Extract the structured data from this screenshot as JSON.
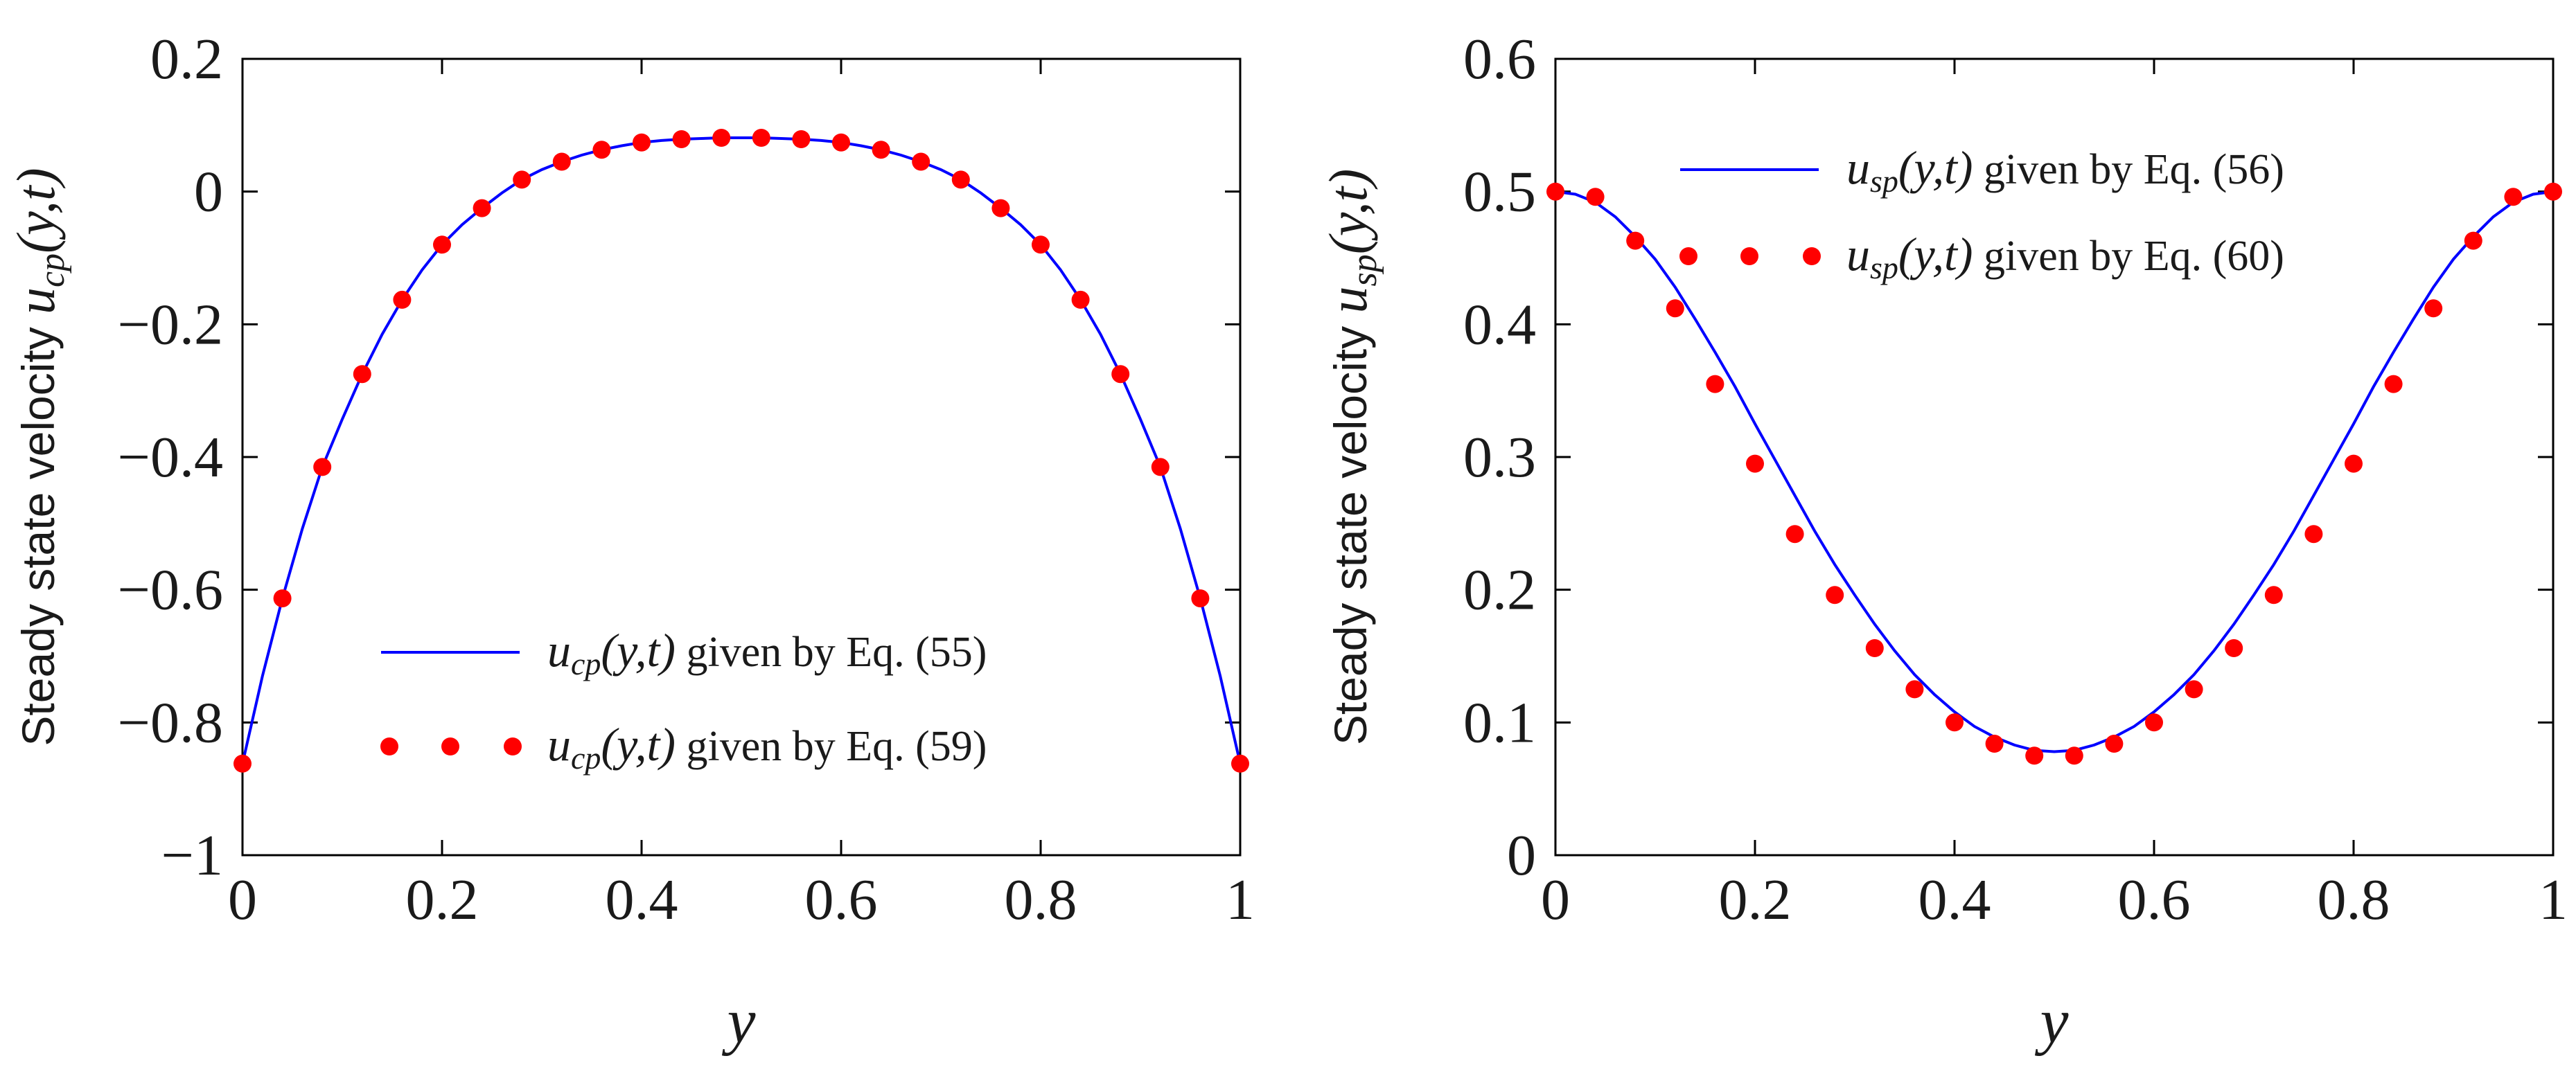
{
  "chart_data": [
    {
      "type": "line",
      "title": "",
      "xlabel": "y",
      "ylabel": "Steady state velocity u",
      "ylabel_sub": "cp",
      "ylabel_args": "(y,t)",
      "xlim": [
        0,
        1
      ],
      "ylim": [
        -1,
        0.2
      ],
      "xticks": [
        "0",
        "0.2",
        "0.4",
        "0.6",
        "0.8",
        "1"
      ],
      "xtick_values": [
        0,
        0.2,
        0.4,
        0.6,
        0.8,
        1
      ],
      "yticks": [
        "−1",
        "−0.8",
        "−0.6",
        "−0.4",
        "−0.2",
        "0",
        "0.2"
      ],
      "ytick_values": [
        -1,
        -0.8,
        -0.6,
        -0.4,
        -0.2,
        0,
        0.2
      ],
      "legend_position": "lower-center",
      "series": [
        {
          "name": "u_cp(y,t) given by Eq. (55)",
          "legend": {
            "sym": "u",
            "sub": "cp",
            "args": "(y,t)",
            "rest": " given by Eq. (55)"
          },
          "style": "line",
          "color": "#0000ff",
          "x": [
            0,
            0.02,
            0.04,
            0.06,
            0.08,
            0.1,
            0.12,
            0.14,
            0.16,
            0.18,
            0.2,
            0.22,
            0.24,
            0.26,
            0.28,
            0.3,
            0.32,
            0.34,
            0.36,
            0.38,
            0.4,
            0.42,
            0.44,
            0.46,
            0.48,
            0.5,
            0.52,
            0.54,
            0.56,
            0.58,
            0.6,
            0.62,
            0.64,
            0.66,
            0.68,
            0.7,
            0.72,
            0.74,
            0.76,
            0.78,
            0.8,
            0.82,
            0.84,
            0.86,
            0.88,
            0.9,
            0.92,
            0.94,
            0.96,
            0.98,
            1
          ],
          "y": [
            -0.862,
            -0.73,
            -0.613,
            -0.508,
            -0.415,
            -0.343,
            -0.275,
            -0.215,
            -0.163,
            -0.118,
            -0.08,
            -0.05,
            -0.025,
            -0.002,
            0.018,
            0.033,
            0.045,
            0.055,
            0.063,
            0.069,
            0.074,
            0.077,
            0.079,
            0.08,
            0.081,
            0.081,
            0.081,
            0.08,
            0.079,
            0.077,
            0.074,
            0.069,
            0.063,
            0.055,
            0.045,
            0.033,
            0.018,
            -0.002,
            -0.025,
            -0.05,
            -0.08,
            -0.118,
            -0.163,
            -0.215,
            -0.275,
            -0.343,
            -0.415,
            -0.508,
            -0.613,
            -0.73,
            -0.862
          ]
        },
        {
          "name": "u_cp(y,t) given by Eq. (59)",
          "legend": {
            "sym": "u",
            "sub": "cp",
            "args": "(y,t)",
            "rest": " given by Eq. (59)"
          },
          "style": "markers",
          "color": "#ff0000",
          "x": [
            0,
            0.04,
            0.08,
            0.12,
            0.16,
            0.2,
            0.24,
            0.28,
            0.32,
            0.36,
            0.4,
            0.44,
            0.48,
            0.52,
            0.56,
            0.6,
            0.64,
            0.68,
            0.72,
            0.76,
            0.8,
            0.84,
            0.88,
            0.92,
            0.96,
            1
          ],
          "y": [
            -0.862,
            -0.613,
            -0.415,
            -0.275,
            -0.163,
            -0.08,
            -0.025,
            0.018,
            0.045,
            0.063,
            0.074,
            0.079,
            0.081,
            0.081,
            0.079,
            0.074,
            0.063,
            0.045,
            0.018,
            -0.025,
            -0.08,
            -0.163,
            -0.275,
            -0.415,
            -0.613,
            -0.862
          ]
        }
      ]
    },
    {
      "type": "line",
      "title": "",
      "xlabel": "y",
      "ylabel": "Steady state velocity u",
      "ylabel_sub": "sp",
      "ylabel_args": "(y,t)",
      "xlim": [
        0,
        1
      ],
      "ylim": [
        0,
        0.6
      ],
      "xticks": [
        "0",
        "0.2",
        "0.4",
        "0.6",
        "0.8",
        "1"
      ],
      "xtick_values": [
        0,
        0.2,
        0.4,
        0.6,
        0.8,
        1
      ],
      "yticks": [
        "0",
        "0.1",
        "0.2",
        "0.3",
        "0.4",
        "0.5",
        "0.6"
      ],
      "ytick_values": [
        0,
        0.1,
        0.2,
        0.3,
        0.4,
        0.5,
        0.6
      ],
      "legend_position": "top-center",
      "series": [
        {
          "name": "u_sp(y,t) given by Eq. (56)",
          "legend": {
            "sym": "u",
            "sub": "sp",
            "args": "(y,t)",
            "rest": " given by Eq. (56)"
          },
          "style": "line",
          "color": "#0000ff",
          "x": [
            0,
            0.02,
            0.04,
            0.06,
            0.08,
            0.1,
            0.12,
            0.14,
            0.16,
            0.18,
            0.2,
            0.22,
            0.24,
            0.26,
            0.28,
            0.3,
            0.32,
            0.34,
            0.36,
            0.38,
            0.4,
            0.42,
            0.44,
            0.46,
            0.48,
            0.5,
            0.52,
            0.54,
            0.56,
            0.58,
            0.6,
            0.62,
            0.64,
            0.66,
            0.68,
            0.7,
            0.72,
            0.74,
            0.76,
            0.78,
            0.8,
            0.82,
            0.84,
            0.86,
            0.88,
            0.9,
            0.92,
            0.94,
            0.96,
            0.98,
            1
          ],
          "y": [
            0.5,
            0.498,
            0.492,
            0.481,
            0.466,
            0.449,
            0.428,
            0.404,
            0.379,
            0.353,
            0.325,
            0.298,
            0.271,
            0.244,
            0.219,
            0.196,
            0.174,
            0.154,
            0.136,
            0.121,
            0.108,
            0.097,
            0.089,
            0.083,
            0.079,
            0.078,
            0.079,
            0.083,
            0.089,
            0.097,
            0.108,
            0.121,
            0.136,
            0.154,
            0.174,
            0.196,
            0.219,
            0.244,
            0.271,
            0.298,
            0.325,
            0.353,
            0.379,
            0.404,
            0.428,
            0.449,
            0.466,
            0.481,
            0.492,
            0.498,
            0.5
          ]
        },
        {
          "name": "u_sp(y,t) given by Eq. (60)",
          "legend": {
            "sym": "u",
            "sub": "sp",
            "args": "(y,t)",
            "rest": " given by Eq. (60)"
          },
          "style": "markers",
          "color": "#ff0000",
          "x": [
            0,
            0.04,
            0.08,
            0.12,
            0.16,
            0.2,
            0.24,
            0.28,
            0.32,
            0.36,
            0.4,
            0.44,
            0.48,
            0.52,
            0.56,
            0.6,
            0.64,
            0.68,
            0.72,
            0.76,
            0.8,
            0.84,
            0.88,
            0.92,
            0.96,
            1
          ],
          "y": [
            0.5,
            0.496,
            0.463,
            0.412,
            0.355,
            0.295,
            0.242,
            0.196,
            0.156,
            0.125,
            0.1,
            0.084,
            0.075,
            0.075,
            0.084,
            0.1,
            0.125,
            0.156,
            0.196,
            0.242,
            0.295,
            0.355,
            0.412,
            0.463,
            0.496,
            0.5
          ]
        }
      ]
    }
  ]
}
